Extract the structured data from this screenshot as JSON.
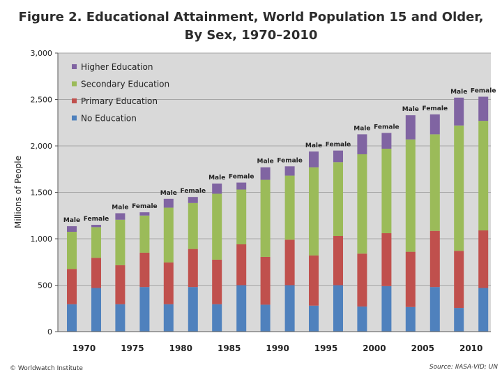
{
  "chart_data": {
    "type": "bar",
    "stacked": true,
    "title": "Figure 2. Educational Attainment, World Population 15 and Older,",
    "subtitle": "By Sex, 1970–2010",
    "ylabel": "Millions of People",
    "xlabel": "",
    "ylim": [
      0,
      3000
    ],
    "yticks": [
      "0",
      "500",
      "1,000",
      "1,500",
      "2,000",
      "2,500",
      "3,000"
    ],
    "ytick_values": [
      0,
      500,
      1000,
      1500,
      2000,
      2500,
      3000
    ],
    "grid": true,
    "legend_position": "top-left",
    "years": [
      "1970",
      "1975",
      "1980",
      "1985",
      "1990",
      "1995",
      "2000",
      "2005",
      "2010"
    ],
    "sex_labels": [
      "Male",
      "Female"
    ],
    "bars": [
      {
        "year": "1970",
        "sex": "Male",
        "values": [
          295,
          380,
          400,
          60
        ]
      },
      {
        "year": "1970",
        "sex": "Female",
        "values": [
          470,
          325,
          330,
          25
        ]
      },
      {
        "year": "1975",
        "sex": "Male",
        "values": [
          295,
          420,
          490,
          70
        ]
      },
      {
        "year": "1975",
        "sex": "Female",
        "values": [
          480,
          370,
          400,
          35
        ]
      },
      {
        "year": "1980",
        "sex": "Male",
        "values": [
          295,
          450,
          590,
          95
        ]
      },
      {
        "year": "1980",
        "sex": "Female",
        "values": [
          480,
          410,
          495,
          65
        ]
      },
      {
        "year": "1985",
        "sex": "Male",
        "values": [
          295,
          480,
          710,
          110
        ]
      },
      {
        "year": "1985",
        "sex": "Female",
        "values": [
          500,
          440,
          590,
          75
        ]
      },
      {
        "year": "1990",
        "sex": "Male",
        "values": [
          290,
          515,
          830,
          135
        ]
      },
      {
        "year": "1990",
        "sex": "Female",
        "values": [
          500,
          490,
          690,
          100
        ]
      },
      {
        "year": "1995",
        "sex": "Male",
        "values": [
          280,
          540,
          950,
          170
        ]
      },
      {
        "year": "1995",
        "sex": "Female",
        "values": [
          500,
          530,
          795,
          125
        ]
      },
      {
        "year": "2000",
        "sex": "Male",
        "values": [
          270,
          570,
          1070,
          215
        ]
      },
      {
        "year": "2000",
        "sex": "Female",
        "values": [
          490,
          570,
          910,
          170
        ]
      },
      {
        "year": "2005",
        "sex": "Male",
        "values": [
          265,
          595,
          1210,
          260
        ]
      },
      {
        "year": "2005",
        "sex": "Female",
        "values": [
          480,
          605,
          1040,
          215
        ]
      },
      {
        "year": "2010",
        "sex": "Male",
        "values": [
          255,
          615,
          1350,
          300
        ]
      },
      {
        "year": "2010",
        "sex": "Female",
        "values": [
          470,
          620,
          1180,
          260
        ]
      }
    ],
    "series": [
      {
        "name": "No Education",
        "color": "#4f81bd"
      },
      {
        "name": "Primary Education",
        "color": "#c0504d"
      },
      {
        "name": "Secondary Education",
        "color": "#9bbb59"
      },
      {
        "name": "Higher Education",
        "color": "#8064a2"
      }
    ],
    "legend_order": [
      "Higher Education",
      "Secondary Education",
      "Primary Education",
      "No Education"
    ],
    "plot_background": "#d9d9d9"
  },
  "footer": {
    "credit": "© Worldwatch Institute",
    "source": "Source: IIASA-VID; UN"
  }
}
